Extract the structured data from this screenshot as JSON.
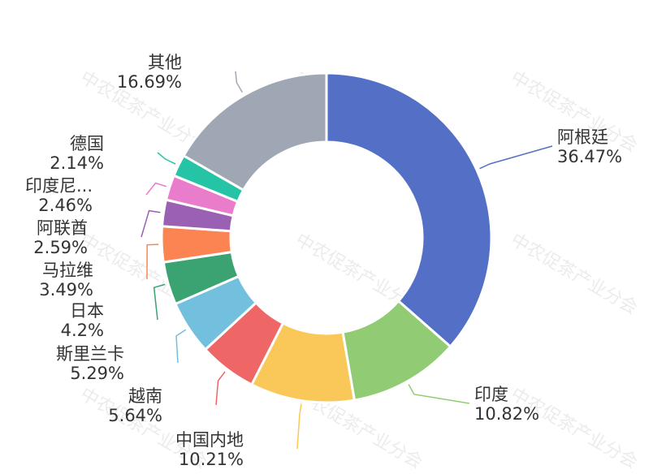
{
  "watermark": "中农促茶产业分会",
  "chart_data": {
    "type": "pie",
    "variant": "donut",
    "slices": [
      {
        "name": "阿根廷",
        "label": "阿根廷",
        "pct": "36.47%",
        "value": 36.47,
        "color": "#5470c6"
      },
      {
        "name": "印度",
        "label": "印度",
        "pct": "10.82%",
        "value": 10.82,
        "color": "#91cc75"
      },
      {
        "name": "中国内地",
        "label": "中国内地",
        "pct": "10.21%",
        "value": 10.21,
        "color": "#fac858"
      },
      {
        "name": "越南",
        "label": "越南",
        "pct": "5.64%",
        "value": 5.64,
        "color": "#ee6666"
      },
      {
        "name": "斯里兰卡",
        "label": "斯里兰卡",
        "pct": "5.29%",
        "value": 5.29,
        "color": "#73c0de"
      },
      {
        "name": "日本",
        "label": "日本",
        "pct": "4.2%",
        "value": 4.2,
        "color": "#3ba272"
      },
      {
        "name": "马拉维",
        "label": "马拉维",
        "pct": "3.49%",
        "value": 3.49,
        "color": "#fc8452"
      },
      {
        "name": "阿联酋",
        "label": "阿联酋",
        "pct": "2.59%",
        "value": 2.59,
        "color": "#9a60b4"
      },
      {
        "name": "印度尼...",
        "label": "印度尼...",
        "pct": "2.46%",
        "value": 2.46,
        "color": "#ea7ccc"
      },
      {
        "name": "德国",
        "label": "德国",
        "pct": "2.14%",
        "value": 2.14,
        "color": "#26c4a6"
      },
      {
        "name": "其他",
        "label": "其他",
        "pct": "16.69%",
        "value": 16.69,
        "color": "#a0a7b4"
      }
    ]
  }
}
